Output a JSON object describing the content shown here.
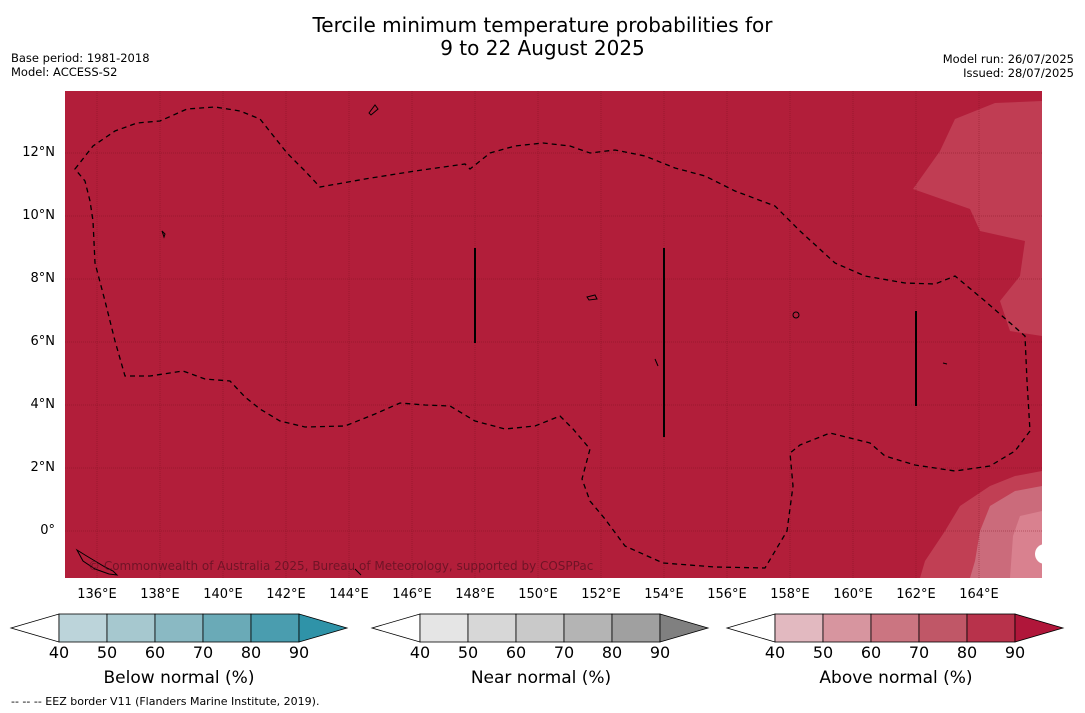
{
  "title": {
    "line1": "Tercile minimum temperature probabilities for",
    "line2": "9 to 22 August 2025"
  },
  "meta": {
    "base_period": "Base period: 1981-2018",
    "model": "Model: ACCESS-S2",
    "model_run": "Model run: 26/07/2025",
    "issued": "Issued: 28/07/2025"
  },
  "map": {
    "fill_color": "#b21e3a",
    "light_patch_color": "#d9818f",
    "mid_patch_color": "#c24358",
    "lat_labels": [
      "12°N",
      "10°N",
      "8°N",
      "6°N",
      "4°N",
      "2°N",
      "0°"
    ],
    "lon_labels": [
      "136°E",
      "138°E",
      "140°E",
      "142°E",
      "144°E",
      "146°E",
      "148°E",
      "150°E",
      "152°E",
      "154°E",
      "156°E",
      "158°E",
      "160°E",
      "162°E",
      "164°E"
    ],
    "copyright": "© Commonwealth of Australia 2025, Bureau of Meteorology, supported by COSPPac"
  },
  "colorbars": [
    {
      "label": "Below normal (%)",
      "ticks": [
        "40",
        "50",
        "60",
        "70",
        "80",
        "90"
      ],
      "colors": [
        "#ffffff",
        "#bcd4da",
        "#a6c8cf",
        "#8ab9c3",
        "#6aaab7",
        "#4a9daf",
        "#2f93a8"
      ]
    },
    {
      "label": "Near normal (%)",
      "ticks": [
        "40",
        "50",
        "60",
        "70",
        "80",
        "90"
      ],
      "colors": [
        "#ffffff",
        "#e5e5e5",
        "#d7d7d7",
        "#c9c9c9",
        "#b4b4b4",
        "#a0a0a0",
        "#808080"
      ]
    },
    {
      "label": "Above normal (%)",
      "ticks": [
        "40",
        "50",
        "60",
        "70",
        "80",
        "90"
      ],
      "colors": [
        "#ffffff",
        "#e2b9c0",
        "#d7959f",
        "#cb7581",
        "#c05767",
        "#b8324b",
        "#b0163a"
      ]
    }
  ],
  "footnote": "--  --  -- EEZ border V11 (Flanders Marine Institute, 2019)."
}
